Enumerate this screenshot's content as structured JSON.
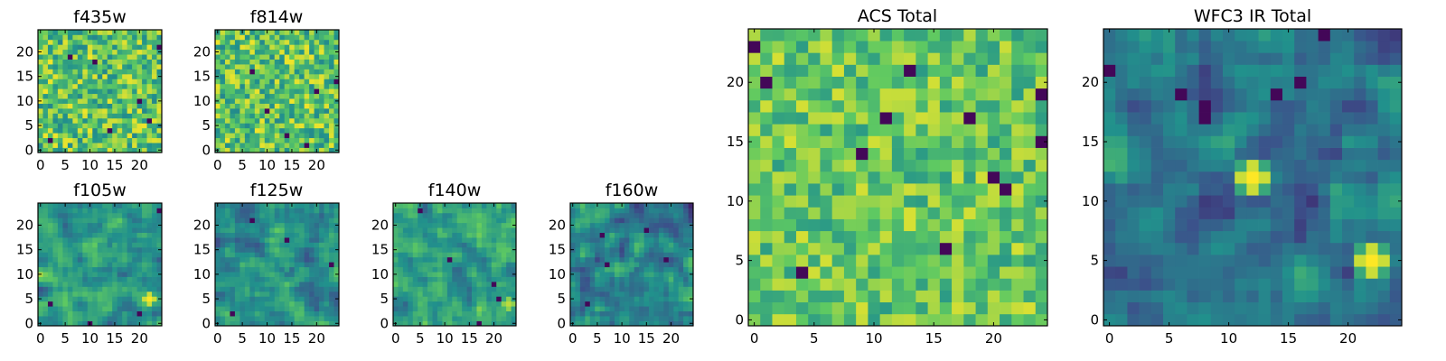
{
  "chart_data": {
    "type": "heatmap",
    "colormap": "viridis",
    "colormap_stops": [
      "#440154",
      "#3b528b",
      "#21918c",
      "#5ec962",
      "#fde725"
    ],
    "panels": [
      {
        "id": "f435w",
        "title": "f435w",
        "grid_size": 25,
        "xlim": [
          -0.5,
          24.5
        ],
        "ylim": [
          -0.5,
          24.5
        ],
        "xticks": [
          0,
          5,
          10,
          15,
          20
        ],
        "yticks": [
          0,
          5,
          10,
          15,
          20
        ],
        "noise": "fine",
        "mean": 0.72,
        "spread": 0.26,
        "hotspots": [],
        "darkspots": [
          [
            6,
            19
          ],
          [
            11,
            18
          ],
          [
            20,
            10
          ],
          [
            14,
            4
          ],
          [
            22,
            6
          ],
          [
            2,
            2
          ],
          [
            24,
            21
          ]
        ]
      },
      {
        "id": "f814w",
        "title": "f814w",
        "grid_size": 25,
        "xlim": [
          -0.5,
          24.5
        ],
        "ylim": [
          -0.5,
          24.5
        ],
        "xticks": [
          0,
          5,
          10,
          15,
          20
        ],
        "yticks": [
          0,
          5,
          10,
          15,
          20
        ],
        "noise": "fine",
        "mean": 0.72,
        "spread": 0.26,
        "hotspots": [],
        "darkspots": [
          [
            20,
            12
          ],
          [
            10,
            8
          ],
          [
            18,
            1
          ],
          [
            24,
            14
          ],
          [
            7,
            16
          ],
          [
            14,
            3
          ]
        ]
      },
      {
        "id": "f105w",
        "title": "f105w",
        "grid_size": 25,
        "xlim": [
          -0.5,
          24.5
        ],
        "ylim": [
          -0.5,
          24.5
        ],
        "xticks": [
          0,
          5,
          10,
          15,
          20
        ],
        "yticks": [
          0,
          5,
          10,
          15,
          20
        ],
        "noise": "smooth",
        "mean": 0.55,
        "spread": 0.14,
        "hotspots": [
          [
            22,
            5,
            1.0
          ]
        ],
        "darkspots": [
          [
            20,
            2
          ],
          [
            10,
            0
          ],
          [
            24,
            23
          ],
          [
            2,
            4
          ]
        ]
      },
      {
        "id": "f125w",
        "title": "f125w",
        "grid_size": 25,
        "xlim": [
          -0.5,
          24.5
        ],
        "ylim": [
          -0.5,
          24.5
        ],
        "xticks": [
          0,
          5,
          10,
          15,
          20
        ],
        "yticks": [
          0,
          5,
          10,
          15,
          20
        ],
        "noise": "smooth",
        "mean": 0.5,
        "spread": 0.14,
        "hotspots": [
          [
            11,
            17,
            0.6
          ],
          [
            14,
            12,
            0.6
          ]
        ],
        "darkspots": [
          [
            23,
            12
          ],
          [
            3,
            2
          ],
          [
            14,
            17
          ],
          [
            7,
            21
          ]
        ]
      },
      {
        "id": "f140w",
        "title": "f140w",
        "grid_size": 25,
        "xlim": [
          -0.5,
          24.5
        ],
        "ylim": [
          -0.5,
          24.5
        ],
        "xticks": [
          0,
          5,
          10,
          15,
          20
        ],
        "yticks": [
          0,
          5,
          10,
          15,
          20
        ],
        "noise": "smooth",
        "mean": 0.58,
        "spread": 0.14,
        "hotspots": [
          [
            23,
            4,
            0.9
          ]
        ],
        "darkspots": [
          [
            5,
            23
          ],
          [
            20,
            8
          ],
          [
            21,
            5
          ],
          [
            11,
            13
          ],
          [
            17,
            0
          ]
        ]
      },
      {
        "id": "f160w",
        "title": "f160w",
        "grid_size": 25,
        "xlim": [
          -0.5,
          24.5
        ],
        "ylim": [
          -0.5,
          24.5
        ],
        "xticks": [
          0,
          5,
          10,
          15,
          20
        ],
        "yticks": [
          0,
          5,
          10,
          15,
          20
        ],
        "noise": "smooth",
        "mean": 0.45,
        "spread": 0.14,
        "hotspots": [
          [
            12,
            12,
            0.6
          ]
        ],
        "darkspots": [
          [
            6,
            18
          ],
          [
            15,
            19
          ],
          [
            19,
            13
          ],
          [
            7,
            12
          ],
          [
            3,
            4
          ]
        ]
      },
      {
        "id": "acs-total",
        "title": "ACS Total",
        "grid_size": 25,
        "xlim": [
          -0.5,
          24.5
        ],
        "ylim": [
          -0.5,
          24.5
        ],
        "xticks": [
          0,
          5,
          10,
          15,
          20
        ],
        "yticks": [
          0,
          5,
          10,
          15,
          20
        ],
        "noise": "fine",
        "mean": 0.74,
        "spread": 0.2,
        "hotspots": [],
        "darkspots": [
          [
            0,
            23
          ],
          [
            1,
            20
          ],
          [
            11,
            17
          ],
          [
            9,
            14
          ],
          [
            18,
            17
          ],
          [
            20,
            12
          ],
          [
            21,
            11
          ],
          [
            4,
            4
          ],
          [
            16,
            6
          ],
          [
            24,
            19
          ],
          [
            24,
            15
          ],
          [
            13,
            21
          ]
        ]
      },
      {
        "id": "wfc3-ir-total",
        "title": "WFC3 IR Total",
        "grid_size": 25,
        "xlim": [
          -0.5,
          24.5
        ],
        "ylim": [
          -0.5,
          24.5
        ],
        "xticks": [
          0,
          5,
          10,
          15,
          20
        ],
        "yticks": [
          0,
          5,
          10,
          15,
          20
        ],
        "noise": "smooth",
        "mean": 0.4,
        "spread": 0.14,
        "hotspots": [
          [
            12,
            12,
            1.0
          ],
          [
            22,
            5,
            1.0
          ]
        ],
        "darkspots": [
          [
            18,
            24
          ],
          [
            6,
            19
          ],
          [
            8,
            18
          ],
          [
            14,
            19
          ],
          [
            8,
            17
          ],
          [
            16,
            20
          ],
          [
            0,
            21
          ]
        ]
      }
    ]
  }
}
